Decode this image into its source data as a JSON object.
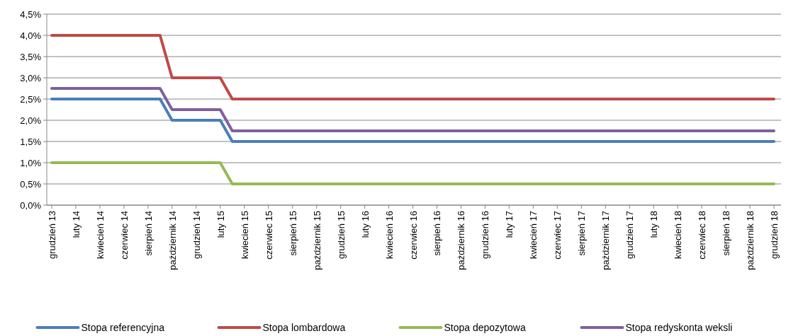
{
  "chart_data": {
    "type": "line",
    "categories": [
      "grudzień 13",
      null,
      "luty 14",
      null,
      "kwiecień 14",
      null,
      "czerwiec 14",
      null,
      "sierpień 14",
      null,
      "październik 14",
      null,
      "grudzień 14",
      null,
      "luty 15",
      null,
      "kwiecień 15",
      null,
      "czerwiec 15",
      null,
      "sierpień 15",
      null,
      "październik 15",
      null,
      "grudzień 15",
      null,
      "luty 16",
      null,
      "kwiecień 16",
      null,
      "czerwiec 16",
      null,
      "sierpień 16",
      null,
      "październik 16",
      null,
      "grudzień 16",
      null,
      "luty 17",
      null,
      "kwiecień 17",
      null,
      "czerwiec 17",
      null,
      "sierpień 17",
      null,
      "październik 17",
      null,
      "grudzień 17",
      null,
      "luty 18",
      null,
      "kwiecień 18",
      null,
      "czerwiec 18",
      null,
      "sierpień 18",
      null,
      "październik 18",
      null,
      "grudzień 18"
    ],
    "series": [
      {
        "name": "Stopa referencyjna",
        "color": "#4a7ebb",
        "values": [
          2.5,
          2.5,
          2.5,
          2.5,
          2.5,
          2.5,
          2.5,
          2.5,
          2.5,
          2.5,
          2,
          2,
          2,
          2,
          2,
          1.5,
          1.5,
          1.5,
          1.5,
          1.5,
          1.5,
          1.5,
          1.5,
          1.5,
          1.5,
          1.5,
          1.5,
          1.5,
          1.5,
          1.5,
          1.5,
          1.5,
          1.5,
          1.5,
          1.5,
          1.5,
          1.5,
          1.5,
          1.5,
          1.5,
          1.5,
          1.5,
          1.5,
          1.5,
          1.5,
          1.5,
          1.5,
          1.5,
          1.5,
          1.5,
          1.5,
          1.5,
          1.5,
          1.5,
          1.5,
          1.5,
          1.5,
          1.5,
          1.5,
          1.5,
          1.5
        ]
      },
      {
        "name": "Stopa lombardowa",
        "color": "#be4b48",
        "values": [
          4,
          4,
          4,
          4,
          4,
          4,
          4,
          4,
          4,
          4,
          3,
          3,
          3,
          3,
          3,
          2.5,
          2.5,
          2.5,
          2.5,
          2.5,
          2.5,
          2.5,
          2.5,
          2.5,
          2.5,
          2.5,
          2.5,
          2.5,
          2.5,
          2.5,
          2.5,
          2.5,
          2.5,
          2.5,
          2.5,
          2.5,
          2.5,
          2.5,
          2.5,
          2.5,
          2.5,
          2.5,
          2.5,
          2.5,
          2.5,
          2.5,
          2.5,
          2.5,
          2.5,
          2.5,
          2.5,
          2.5,
          2.5,
          2.5,
          2.5,
          2.5,
          2.5,
          2.5,
          2.5,
          2.5,
          2.5
        ]
      },
      {
        "name": "Stopa depozytowa",
        "color": "#98b954",
        "values": [
          1,
          1,
          1,
          1,
          1,
          1,
          1,
          1,
          1,
          1,
          1,
          1,
          1,
          1,
          1,
          0.5,
          0.5,
          0.5,
          0.5,
          0.5,
          0.5,
          0.5,
          0.5,
          0.5,
          0.5,
          0.5,
          0.5,
          0.5,
          0.5,
          0.5,
          0.5,
          0.5,
          0.5,
          0.5,
          0.5,
          0.5,
          0.5,
          0.5,
          0.5,
          0.5,
          0.5,
          0.5,
          0.5,
          0.5,
          0.5,
          0.5,
          0.5,
          0.5,
          0.5,
          0.5,
          0.5,
          0.5,
          0.5,
          0.5,
          0.5,
          0.5,
          0.5,
          0.5,
          0.5,
          0.5,
          0.5
        ]
      },
      {
        "name": "Stopa redyskonta weksli",
        "color": "#7d60a0",
        "values": [
          2.75,
          2.75,
          2.75,
          2.75,
          2.75,
          2.75,
          2.75,
          2.75,
          2.75,
          2.75,
          2.25,
          2.25,
          2.25,
          2.25,
          2.25,
          1.75,
          1.75,
          1.75,
          1.75,
          1.75,
          1.75,
          1.75,
          1.75,
          1.75,
          1.75,
          1.75,
          1.75,
          1.75,
          1.75,
          1.75,
          1.75,
          1.75,
          1.75,
          1.75,
          1.75,
          1.75,
          1.75,
          1.75,
          1.75,
          1.75,
          1.75,
          1.75,
          1.75,
          1.75,
          1.75,
          1.75,
          1.75,
          1.75,
          1.75,
          1.75,
          1.75,
          1.75,
          1.75,
          1.75,
          1.75,
          1.75,
          1.75,
          1.75,
          1.75,
          1.75,
          1.75
        ]
      }
    ],
    "ylim": [
      0,
      4.5
    ],
    "yticks": [
      {
        "value": 0,
        "label": "0,0%"
      },
      {
        "value": 0.5,
        "label": "0,5%"
      },
      {
        "value": 1,
        "label": "1,0%"
      },
      {
        "value": 1.5,
        "label": "1,5%"
      },
      {
        "value": 2,
        "label": "2,0%"
      },
      {
        "value": 2.5,
        "label": "2,5%"
      },
      {
        "value": 3,
        "label": "3,0%"
      },
      {
        "value": 3.5,
        "label": "3,5%"
      },
      {
        "value": 4,
        "label": "4,0%"
      },
      {
        "value": 4.5,
        "label": "4,5%"
      }
    ],
    "grid": "y",
    "legend": "bottom",
    "marker": "none",
    "line_style": "solid"
  }
}
